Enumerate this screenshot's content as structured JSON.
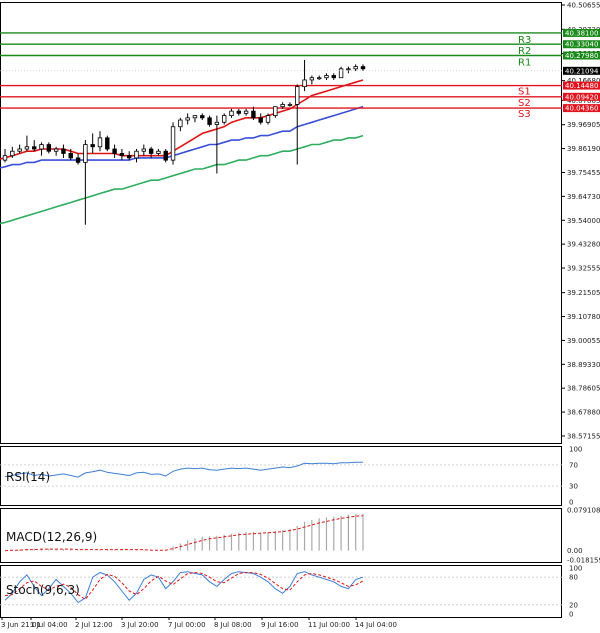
{
  "chart_data": {
    "type": "candlestick",
    "main": {
      "price_axis_ticks": [
        "40.50655",
        "40.39730",
        "40.28805",
        "40.16680",
        "40.07865",
        "39.96905",
        "39.86190",
        "39.75455",
        "39.64730",
        "39.54000",
        "39.43280",
        "39.32555",
        "39.21505",
        "39.10780",
        "39.00055",
        "38.89330",
        "38.78605",
        "38.67880",
        "38.57155"
      ],
      "ylim": [
        38.54,
        40.52
      ],
      "current_price": "40.21094",
      "levels": [
        {
          "name": "R3",
          "value": "40.38100",
          "color": "#1a8a1a"
        },
        {
          "name": "R2",
          "value": "40.33040",
          "color": "#1a8a1a"
        },
        {
          "name": "R1",
          "value": "40.27980",
          "color": "#1a8a1a"
        },
        {
          "name": "S1",
          "value": "40.14480",
          "color": "#e0141e"
        },
        {
          "name": "S2",
          "value": "40.09420",
          "color": "#e0141e"
        },
        {
          "name": "S3",
          "value": "40.04360",
          "color": "#e0141e"
        }
      ],
      "candles": [
        [
          39.81,
          39.86,
          39.8,
          39.83
        ],
        [
          39.83,
          39.87,
          39.82,
          39.85
        ],
        [
          39.85,
          39.88,
          39.84,
          39.86
        ],
        [
          39.86,
          39.92,
          39.85,
          39.87
        ],
        [
          39.87,
          39.9,
          39.85,
          39.86
        ],
        [
          39.86,
          39.89,
          39.83,
          39.88
        ],
        [
          39.88,
          39.89,
          39.84,
          39.85
        ],
        [
          39.85,
          39.87,
          39.83,
          39.86
        ],
        [
          39.86,
          39.88,
          39.82,
          39.84
        ],
        [
          39.84,
          39.86,
          39.81,
          39.82
        ],
        [
          39.82,
          39.84,
          39.79,
          39.8
        ],
        [
          39.8,
          39.9,
          39.52,
          39.88
        ],
        [
          39.88,
          39.93,
          39.84,
          39.87
        ],
        [
          39.87,
          39.94,
          39.85,
          39.91
        ],
        [
          39.91,
          39.92,
          39.85,
          39.86
        ],
        [
          39.86,
          39.88,
          39.82,
          39.84
        ],
        [
          39.84,
          39.86,
          39.81,
          39.83
        ],
        [
          39.83,
          39.85,
          39.81,
          39.82
        ],
        [
          39.82,
          39.86,
          39.8,
          39.85
        ],
        [
          39.85,
          39.88,
          39.83,
          39.86
        ],
        [
          39.86,
          39.87,
          39.82,
          39.84
        ],
        [
          39.84,
          39.86,
          39.83,
          39.85
        ],
        [
          39.85,
          39.86,
          39.8,
          39.81
        ],
        [
          39.81,
          39.98,
          39.79,
          39.96
        ],
        [
          39.96,
          40.0,
          39.94,
          39.99
        ],
        [
          39.99,
          40.02,
          39.97,
          40.0
        ],
        [
          40.0,
          40.01,
          39.98,
          40.01
        ],
        [
          40.01,
          40.02,
          39.99,
          40.0
        ],
        [
          40.0,
          40.01,
          39.96,
          39.97
        ],
        [
          39.97,
          40.01,
          39.75,
          39.98
        ],
        [
          39.98,
          40.02,
          39.97,
          40.01
        ],
        [
          40.01,
          40.04,
          40.0,
          40.03
        ],
        [
          40.03,
          40.04,
          40.01,
          40.02
        ],
        [
          40.02,
          40.04,
          40.01,
          40.03
        ],
        [
          40.03,
          40.05,
          39.99,
          40.0
        ],
        [
          40.0,
          40.02,
          39.97,
          39.98
        ],
        [
          39.98,
          40.02,
          39.97,
          40.01
        ],
        [
          40.01,
          40.05,
          40.0,
          40.05
        ],
        [
          40.05,
          40.07,
          40.04,
          40.06
        ],
        [
          40.06,
          40.07,
          40.05,
          40.06
        ],
        [
          40.06,
          40.15,
          39.79,
          40.14
        ],
        [
          40.14,
          40.26,
          40.12,
          40.17
        ],
        [
          40.17,
          40.19,
          40.15,
          40.18
        ],
        [
          40.18,
          40.19,
          40.17,
          40.18
        ],
        [
          40.18,
          40.2,
          40.17,
          40.19
        ],
        [
          40.19,
          40.2,
          40.17,
          40.18
        ],
        [
          40.18,
          40.23,
          40.18,
          40.22
        ],
        [
          40.22,
          40.23,
          40.2,
          40.22
        ],
        [
          40.22,
          40.24,
          40.21,
          40.23
        ],
        [
          40.23,
          40.24,
          40.21,
          40.22
        ]
      ],
      "ma_red": [
        39.82,
        39.83,
        39.84,
        39.85,
        39.85,
        39.86,
        39.86,
        39.86,
        39.86,
        39.85,
        39.84,
        39.84,
        39.84,
        39.84,
        39.84,
        39.84,
        39.83,
        39.83,
        39.83,
        39.83,
        39.83,
        39.83,
        39.83,
        39.85,
        39.87,
        39.89,
        39.91,
        39.93,
        39.94,
        39.95,
        39.96,
        39.98,
        39.99,
        40.0,
        40.0,
        40.0,
        40.01,
        40.02,
        40.03,
        40.04,
        40.06,
        40.08,
        40.1,
        40.11,
        40.12,
        40.13,
        40.14,
        40.15,
        40.16,
        40.17
      ],
      "ma_blue": [
        39.78,
        39.79,
        39.79,
        39.8,
        39.8,
        39.81,
        39.81,
        39.81,
        39.81,
        39.81,
        39.81,
        39.81,
        39.81,
        39.81,
        39.81,
        39.81,
        39.81,
        39.81,
        39.82,
        39.82,
        39.82,
        39.82,
        39.82,
        39.83,
        39.84,
        39.85,
        39.86,
        39.87,
        39.88,
        39.88,
        39.89,
        39.9,
        39.9,
        39.91,
        39.91,
        39.92,
        39.92,
        39.93,
        39.94,
        39.94,
        39.96,
        39.97,
        39.98,
        39.99,
        40.0,
        40.01,
        40.02,
        40.03,
        40.04,
        40.05
      ],
      "ma_green": [
        39.53,
        39.54,
        39.55,
        39.56,
        39.57,
        39.58,
        39.59,
        39.6,
        39.61,
        39.62,
        39.63,
        39.64,
        39.65,
        39.66,
        39.67,
        39.68,
        39.68,
        39.69,
        39.7,
        39.71,
        39.72,
        39.72,
        39.73,
        39.74,
        39.75,
        39.76,
        39.77,
        39.77,
        39.78,
        39.79,
        39.79,
        39.8,
        39.81,
        39.81,
        39.82,
        39.83,
        39.83,
        39.84,
        39.85,
        39.85,
        39.86,
        39.87,
        39.88,
        39.88,
        39.89,
        39.9,
        39.9,
        39.91,
        39.91,
        39.92
      ]
    },
    "rsi": {
      "label": "RSI(14)",
      "ticks": [
        "100",
        "70",
        "30",
        "0"
      ],
      "ylim": [
        0,
        100
      ],
      "values": [
        48,
        50,
        53,
        55,
        50,
        52,
        49,
        51,
        53,
        50,
        47,
        55,
        57,
        60,
        56,
        54,
        52,
        50,
        55,
        56,
        52,
        53,
        49,
        58,
        62,
        64,
        63,
        64,
        61,
        60,
        62,
        64,
        63,
        64,
        62,
        60,
        62,
        64,
        66,
        65,
        68,
        73,
        72,
        73,
        73,
        72,
        74,
        74,
        75,
        75
      ]
    },
    "macd": {
      "label": "MACD(12,26,9)",
      "ticks": [
        "0.079108",
        "0.00",
        "-0.018159"
      ],
      "ylim": [
        -0.018159,
        0.079108
      ],
      "histogram": [
        0.0,
        0.001,
        0.002,
        0.003,
        0.004,
        0.004,
        0.004,
        0.003,
        0.003,
        0.002,
        0.001,
        0.0,
        0.0,
        0.001,
        0.002,
        0.002,
        0.001,
        0.001,
        0.001,
        0.001,
        0.0,
        0.0,
        0.0,
        0.008,
        0.014,
        0.02,
        0.024,
        0.027,
        0.028,
        0.029,
        0.031,
        0.033,
        0.035,
        0.036,
        0.036,
        0.035,
        0.036,
        0.038,
        0.04,
        0.042,
        0.048,
        0.056,
        0.06,
        0.063,
        0.065,
        0.066,
        0.068,
        0.07,
        0.071,
        0.072
      ],
      "signal": [
        0.0,
        0.001,
        0.001,
        0.002,
        0.002,
        0.003,
        0.003,
        0.003,
        0.003,
        0.003,
        0.002,
        0.002,
        0.002,
        0.002,
        0.002,
        0.002,
        0.002,
        0.002,
        0.002,
        0.002,
        0.001,
        0.001,
        0.001,
        0.004,
        0.008,
        0.012,
        0.016,
        0.02,
        0.023,
        0.025,
        0.027,
        0.029,
        0.031,
        0.032,
        0.033,
        0.034,
        0.035,
        0.036,
        0.037,
        0.039,
        0.042,
        0.046,
        0.05,
        0.054,
        0.057,
        0.06,
        0.063,
        0.065,
        0.067,
        0.068
      ]
    },
    "stoch": {
      "label": "Stoch(9,6,3)",
      "ticks": [
        "100",
        "80",
        "20",
        "0"
      ],
      "ylim": [
        0,
        100
      ],
      "k": [
        30,
        45,
        70,
        85,
        60,
        40,
        55,
        75,
        60,
        45,
        25,
        35,
        80,
        90,
        85,
        70,
        50,
        30,
        45,
        75,
        85,
        80,
        55,
        70,
        90,
        92,
        88,
        85,
        70,
        60,
        75,
        88,
        92,
        90,
        88,
        80,
        70,
        55,
        45,
        60,
        88,
        92,
        85,
        80,
        75,
        70,
        60,
        55,
        75,
        80
      ],
      "d": [
        40,
        42,
        55,
        68,
        72,
        60,
        52,
        60,
        65,
        58,
        42,
        32,
        52,
        75,
        86,
        82,
        68,
        50,
        42,
        55,
        72,
        82,
        72,
        64,
        76,
        88,
        90,
        88,
        80,
        70,
        68,
        78,
        88,
        90,
        90,
        86,
        78,
        66,
        55,
        52,
        70,
        85,
        88,
        85,
        80,
        75,
        68,
        60,
        63,
        72
      ]
    },
    "time_labels": [
      "3 Jun 21:01",
      "1 Jul 04:00",
      "2 Jul 12:00",
      "3 Jul 20:00",
      "7 Jul 00:00",
      "8 Jul 08:00",
      "9 Jul 16:00",
      "11 Jul 00:00",
      "14 Jul 04:00"
    ]
  }
}
